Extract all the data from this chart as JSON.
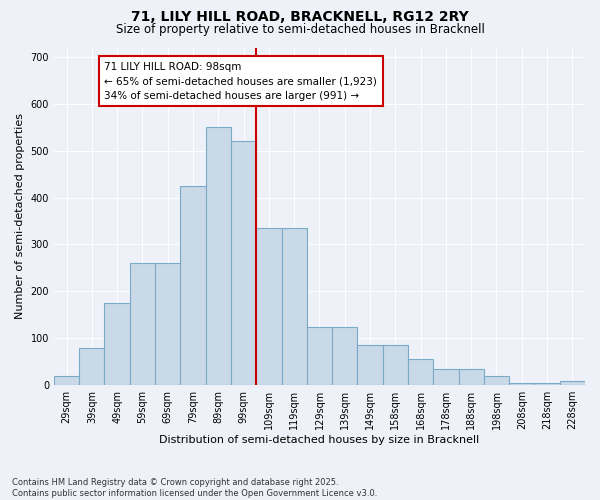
{
  "title_line1": "71, LILY HILL ROAD, BRACKNELL, RG12 2RY",
  "title_line2": "Size of property relative to semi-detached houses in Bracknell",
  "xlabel": "Distribution of semi-detached houses by size in Bracknell",
  "ylabel": "Number of semi-detached properties",
  "footnote": "Contains HM Land Registry data © Crown copyright and database right 2025.\nContains public sector information licensed under the Open Government Licence v3.0.",
  "bin_labels": [
    "29sqm",
    "39sqm",
    "49sqm",
    "59sqm",
    "69sqm",
    "79sqm",
    "89sqm",
    "99sqm",
    "109sqm",
    "119sqm",
    "129sqm",
    "139sqm",
    "149sqm",
    "158sqm",
    "168sqm",
    "178sqm",
    "188sqm",
    "198sqm",
    "208sqm",
    "218sqm",
    "228sqm"
  ],
  "bar_heights": [
    20,
    80,
    175,
    260,
    260,
    425,
    550,
    520,
    335,
    335,
    125,
    125,
    85,
    85,
    55,
    35,
    35,
    20,
    5,
    5,
    10
  ],
  "bar_color": "#c9d9e8",
  "bar_edge_color": "#7aaac8",
  "vline_color": "#cc0000",
  "annotation_title": "71 LILY HILL ROAD: 98sqm",
  "annotation_line1": "← 65% of semi-detached houses are smaller (1,923)",
  "annotation_line2": "34% of semi-detached houses are larger (991) →",
  "ylim": [
    0,
    720
  ],
  "yticks": [
    0,
    100,
    200,
    300,
    400,
    500,
    600,
    700
  ],
  "background_color": "#eef2f8",
  "grid_color": "#ffffff",
  "title_fontsize": 10,
  "subtitle_fontsize": 8.5,
  "axis_label_fontsize": 8,
  "tick_fontsize": 7,
  "annot_fontsize": 7.5
}
